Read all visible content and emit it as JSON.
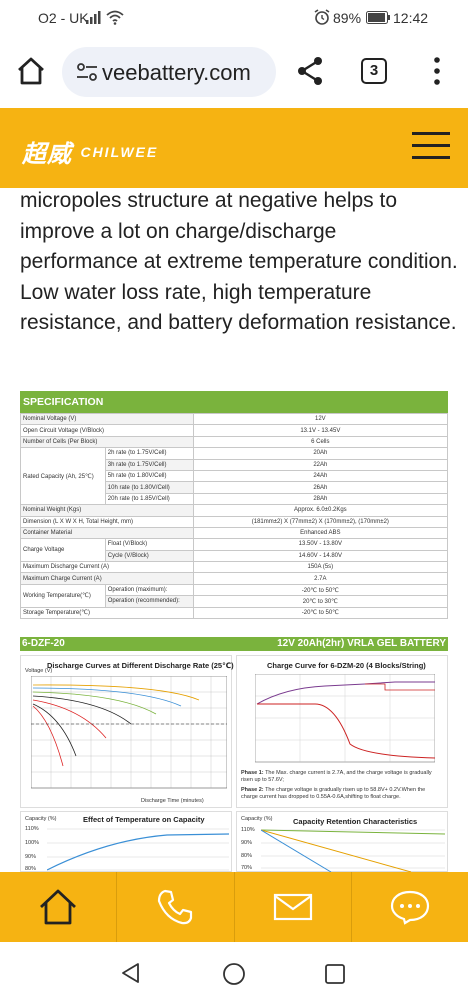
{
  "status_bar": {
    "carrier": "O2 - UK",
    "battery_percent": "89%",
    "time": "12:42"
  },
  "browser": {
    "url": "veebattery.com",
    "tab_count": "3"
  },
  "site": {
    "logo_cn": "超威",
    "logo_en": "CHILWEE"
  },
  "paragraph": "micropoles structure at negative helps to improve a lot on charge/discharge performance at extreme temperature condition. Low water loss rate, high temperature resistance, and battery deformation resistance.",
  "spec": {
    "title": "SPECIFICATION",
    "rows": [
      {
        "label": "Nominal Voltage (V)",
        "value": "12V"
      },
      {
        "label": "Open Circuit Voltage (V/Block)",
        "value": "13.1V - 13.45V"
      },
      {
        "label": "Number of Cells (Per Block)",
        "value": "6 Cells"
      },
      {
        "label": "2h rate (to 1.75V/Cell)",
        "value": "20Ah"
      },
      {
        "label": "3h rate (to 1.75V/Cell)",
        "value": "22Ah"
      },
      {
        "label": "5h rate (to 1.80V/Cell)",
        "value": "24Ah"
      },
      {
        "label": "10h rate (to 1.80V/Cell)",
        "value": "26Ah"
      },
      {
        "label": "20h rate (to 1.85V/Cell)",
        "value": "28Ah"
      },
      {
        "label": "Nominal Weight (Kgs)",
        "value": "Approx. 6.0±0.2Kgs"
      },
      {
        "label": "Dimension (L X W X H, Total Height, mm)",
        "value": "(181mm±2) X (77mm±2) X (170mm±2), (170mm±2)"
      },
      {
        "label": "Container Material",
        "value": "Enhanced ABS"
      },
      {
        "label": "Float (V/Block)",
        "value": "13.50V - 13.80V"
      },
      {
        "label": "Cycle (V/Block)",
        "value": "14.60V - 14.80V"
      },
      {
        "label": "Maximum Discharge Current (A)",
        "value": "150A (5s)"
      },
      {
        "label": "Maximum Charge Current (A)",
        "value": "2.7A"
      },
      {
        "label": "Operation (maximum):",
        "value": "-20℃ to 50℃"
      },
      {
        "label": "Operation (recommended):",
        "value": "20℃ to 30℃"
      },
      {
        "label": "Storage Temperature(℃)",
        "value": "-20℃ to 50℃"
      }
    ],
    "group_rated_capacity": "Rated Capacity (Ah, 25℃)",
    "group_charge_voltage": "Charge Voltage",
    "group_working_temp": "Working Temperature(℃)",
    "banner_model": "6-DZF-20",
    "banner_type": "12V 20Ah(2hr) VRLA GEL BATTERY"
  },
  "charts": {
    "discharge_title": "Discharge Curves at Different Discharge Rate (25℃)",
    "discharge_ylabel": "Voltage (V)",
    "discharge_xlabel": "Discharge Time (minutes)",
    "charge_title": "Charge Curve for 6-DZM-20 (4 Blocks/String)",
    "phase1_label": "Phase 1:",
    "phase1_text": "The Max. charge current is 2.7A, and the charge voltage is gradually risen up to 57.6V;",
    "phase2_label": "Phase 2:",
    "phase2_text": "The charge voltage is gradually risen up to 58.8V+ 0.2V.When the charge current has dropped to 0.55A-0.6A,shifting to float charge.",
    "temp_title": "Effect of Temperature on Capacity",
    "temp_ylabel": "Capacity (%)",
    "temp_ticks": [
      "110%",
      "100%",
      "90%",
      "80%"
    ],
    "retention_title": "Capacity Retention Characteristics",
    "retention_ylabel": "Capacity (%)",
    "retention_ticks": [
      "110%",
      "90%",
      "80%",
      "70%"
    ]
  },
  "icons": {
    "home": "home-icon",
    "phone": "phone-icon",
    "mail": "mail-icon",
    "chat": "chat-icon"
  }
}
